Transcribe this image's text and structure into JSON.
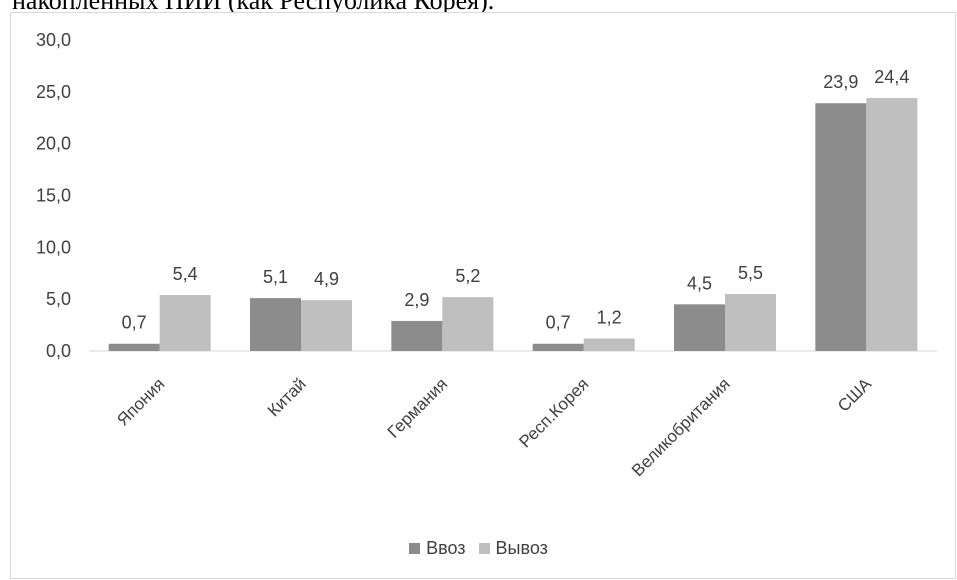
{
  "heading_fragment": "накопленных ПИИ (как Республика Корея).",
  "chart_data": {
    "type": "bar",
    "categories": [
      "Япония",
      "Китай",
      "Германия",
      "Респ.Корея",
      "Великобритания",
      "США"
    ],
    "series": [
      {
        "name": "Ввоз",
        "color": "#8c8c8c",
        "values": [
          0.7,
          5.1,
          2.9,
          0.7,
          4.5,
          23.9
        ],
        "labels": [
          "0,7",
          "5,1",
          "2,9",
          "0,7",
          "4,5",
          "23,9"
        ]
      },
      {
        "name": "Вывоз",
        "color": "#bfbfbf",
        "values": [
          5.4,
          4.9,
          5.2,
          1.2,
          5.5,
          24.4
        ],
        "labels": [
          "5,4",
          "4,9",
          "5,2",
          "1,2",
          "5,5",
          "24,4"
        ]
      }
    ],
    "ylim": [
      0,
      30
    ],
    "yticks": [
      0,
      5,
      10,
      15,
      20,
      25,
      30
    ],
    "ytick_labels": [
      "0,0",
      "5,0",
      "10,0",
      "15,0",
      "20,0",
      "25,0",
      "30,0"
    ],
    "grid": false,
    "legend_position": "bottom",
    "title": "",
    "xlabel": "",
    "ylabel": ""
  }
}
